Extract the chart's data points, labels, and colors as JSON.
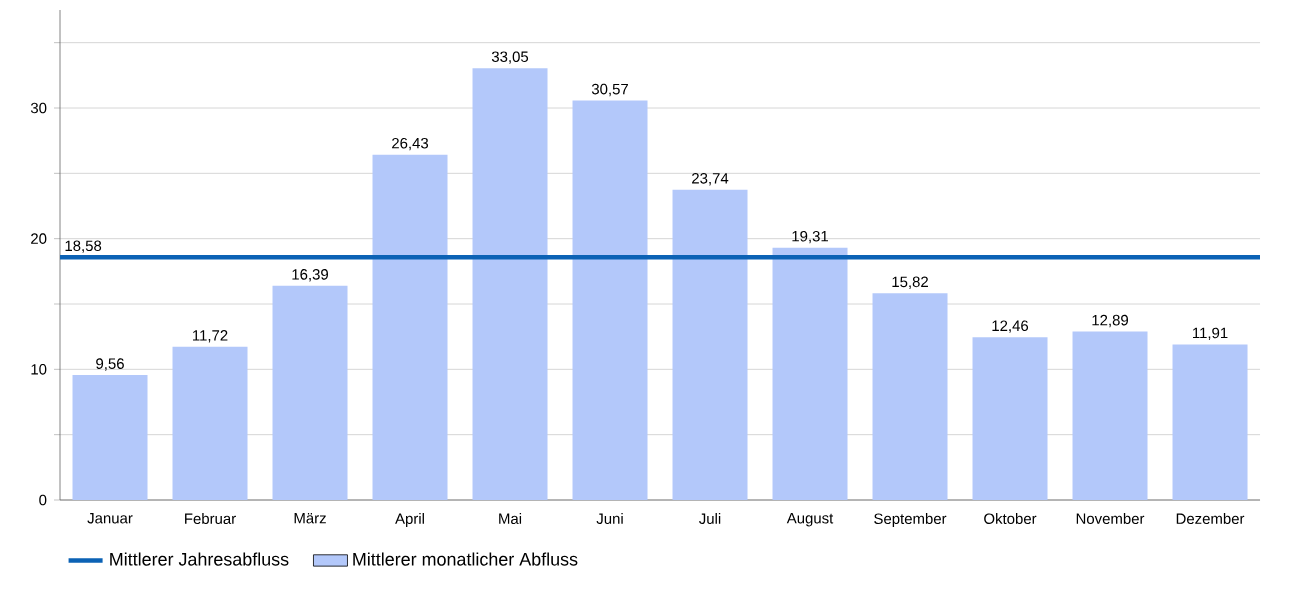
{
  "chart_data": {
    "type": "bar",
    "categories": [
      "Januar",
      "Februar",
      "März",
      "April",
      "Mai",
      "Juni",
      "Juli",
      "August",
      "September",
      "Oktober",
      "November",
      "Dezember"
    ],
    "series": [
      {
        "name": "Mittlerer monatlicher Abfluss",
        "color": "#b3c8fa",
        "values": [
          9.56,
          11.72,
          16.39,
          26.43,
          33.05,
          30.57,
          23.74,
          19.31,
          15.82,
          12.46,
          12.89,
          11.91
        ],
        "value_labels": [
          "9,56",
          "11,72",
          "16,39",
          "26,43",
          "33,05",
          "30,57",
          "23,74",
          "19,31",
          "15,82",
          "12,46",
          "12,89",
          "11,91"
        ]
      }
    ],
    "ylim": [
      0,
      37.5
    ],
    "yticks": [
      0,
      {
        "value": 5,
        "label": null
      },
      10,
      {
        "value": 15,
        "label": null
      },
      20,
      {
        "value": 25,
        "label": null
      },
      30,
      {
        "value": 35,
        "label": null
      }
    ],
    "grid": "y",
    "legend": "bottom",
    "ref_lines": [
      {
        "axis": "y",
        "value": 18.58,
        "label": "Mittlerer Jahresabfluss",
        "color": "#0b62b5"
      }
    ],
    "annotations": [
      {
        "text": "18,58",
        "y": 18.58
      }
    ]
  }
}
